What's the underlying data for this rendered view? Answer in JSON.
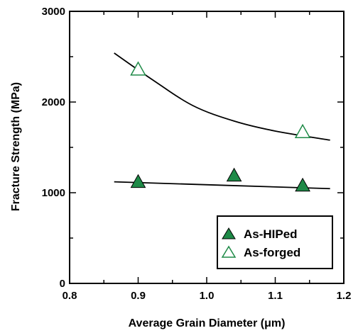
{
  "chart_data": {
    "type": "scatter",
    "title": "",
    "xlabel": "Average Grain Diameter (μm)",
    "ylabel": "Fracture Strength (MPa)",
    "xlim": [
      0.8,
      1.2
    ],
    "ylim": [
      0,
      3000
    ],
    "x_ticks": [
      0.8,
      0.9,
      1.0,
      1.1,
      1.2
    ],
    "y_ticks": [
      0,
      1000,
      2000,
      3000
    ],
    "x_tick_labels": [
      "0.8",
      "0.9",
      "1.0",
      "1.1",
      "1.2"
    ],
    "y_tick_labels": [
      "0",
      "1000",
      "2000",
      "3000"
    ],
    "grid": false,
    "legend_position": "bottom-right",
    "series": [
      {
        "name": "As-HIPed",
        "marker": "filled-triangle",
        "color": "#1e8a47",
        "x": [
          0.9,
          1.04,
          1.14
        ],
        "y": [
          1120,
          1190,
          1080
        ]
      },
      {
        "name": "As-forged",
        "marker": "open-triangle",
        "color": "#1e8a47",
        "x": [
          0.9,
          1.14
        ],
        "y": [
          2360,
          1670
        ]
      }
    ],
    "trend_lines": [
      {
        "x": [
          0.865,
          0.92,
          0.98,
          1.04,
          1.1,
          1.18
        ],
        "y": [
          2540,
          2250,
          1960,
          1790,
          1680,
          1580
        ]
      },
      {
        "x": [
          0.865,
          1.18
        ],
        "y": [
          1120,
          1045
        ]
      }
    ]
  }
}
